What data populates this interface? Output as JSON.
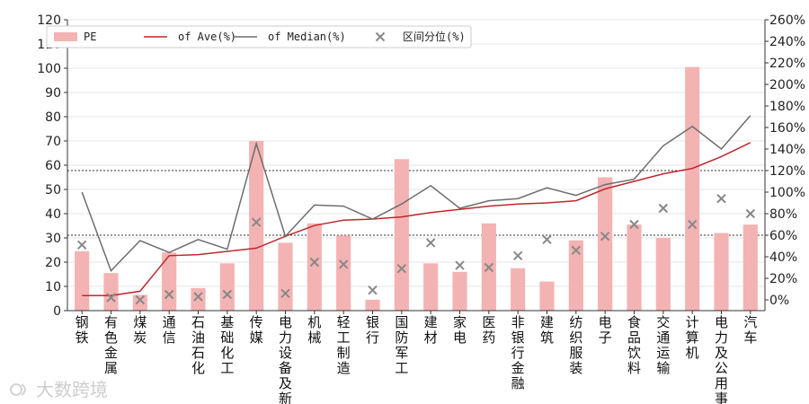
{
  "chart_data": {
    "type": "bar",
    "categories": [
      "钢铁",
      "有色金属",
      "煤炭",
      "通信",
      "石油石化",
      "基础化工",
      "传媒",
      "电力设备及新",
      "机械",
      "轻工制造",
      "银行",
      "国防军工",
      "建材",
      "家电",
      "医药",
      "非银行金融",
      "建筑",
      "纺织服装",
      "电子",
      "食品饮料",
      "交通运输",
      "计算机",
      "电力及公用事业",
      "汽车"
    ],
    "series": [
      {
        "name": "PE",
        "axis": "left",
        "kind": "bar",
        "color": "#f4b3b3",
        "values": [
          24.5,
          15.5,
          6.5,
          24,
          9.3,
          19.5,
          70,
          28,
          36,
          31,
          4.5,
          62.5,
          19.5,
          16,
          36,
          17.5,
          12,
          29,
          55,
          35.5,
          30,
          100.5,
          32,
          35.5
        ]
      },
      {
        "name": "of Ave(%)",
        "axis": "right",
        "kind": "line",
        "color": "#c0272d",
        "values": [
          4,
          4,
          8,
          41,
          42,
          45,
          48,
          59,
          69,
          74,
          75,
          77,
          81,
          84,
          87,
          89,
          90,
          92,
          103,
          110,
          117,
          122,
          133,
          146
        ]
      },
      {
        "name": "of Median(%)",
        "axis": "right",
        "kind": "line",
        "color": "#6d6d6d",
        "values": [
          100,
          27,
          55,
          44,
          56,
          47,
          145,
          59,
          88,
          87,
          75,
          89,
          106,
          85,
          92,
          94,
          104,
          97,
          107,
          112,
          143,
          161,
          140,
          171
        ]
      },
      {
        "name": "区间分位(%)",
        "axis": "right",
        "kind": "scatter",
        "color": "#888888",
        "values": [
          51,
          2,
          0,
          5,
          3,
          5,
          72,
          6,
          35,
          33,
          9,
          29,
          53,
          32,
          30,
          41,
          56,
          46,
          59,
          70,
          85,
          70,
          94,
          80
        ]
      }
    ],
    "ylim_left": [
      0,
      120
    ],
    "yticks_left": [
      "0",
      "10",
      "20",
      "30",
      "40",
      "50",
      "60",
      "70",
      "80",
      "90",
      "100",
      "110",
      "120"
    ],
    "ylim_right": [
      -10,
      260
    ],
    "yticks_right": [
      "0%",
      "20%",
      "40%",
      "60%",
      "80%",
      "100%",
      "120%",
      "140%",
      "160%",
      "180%",
      "200%",
      "220%",
      "240%",
      "260%"
    ],
    "reference_lines_right": [
      60,
      120
    ],
    "legend_position": "top-left",
    "grid": true
  },
  "watermark": "大数跨境"
}
